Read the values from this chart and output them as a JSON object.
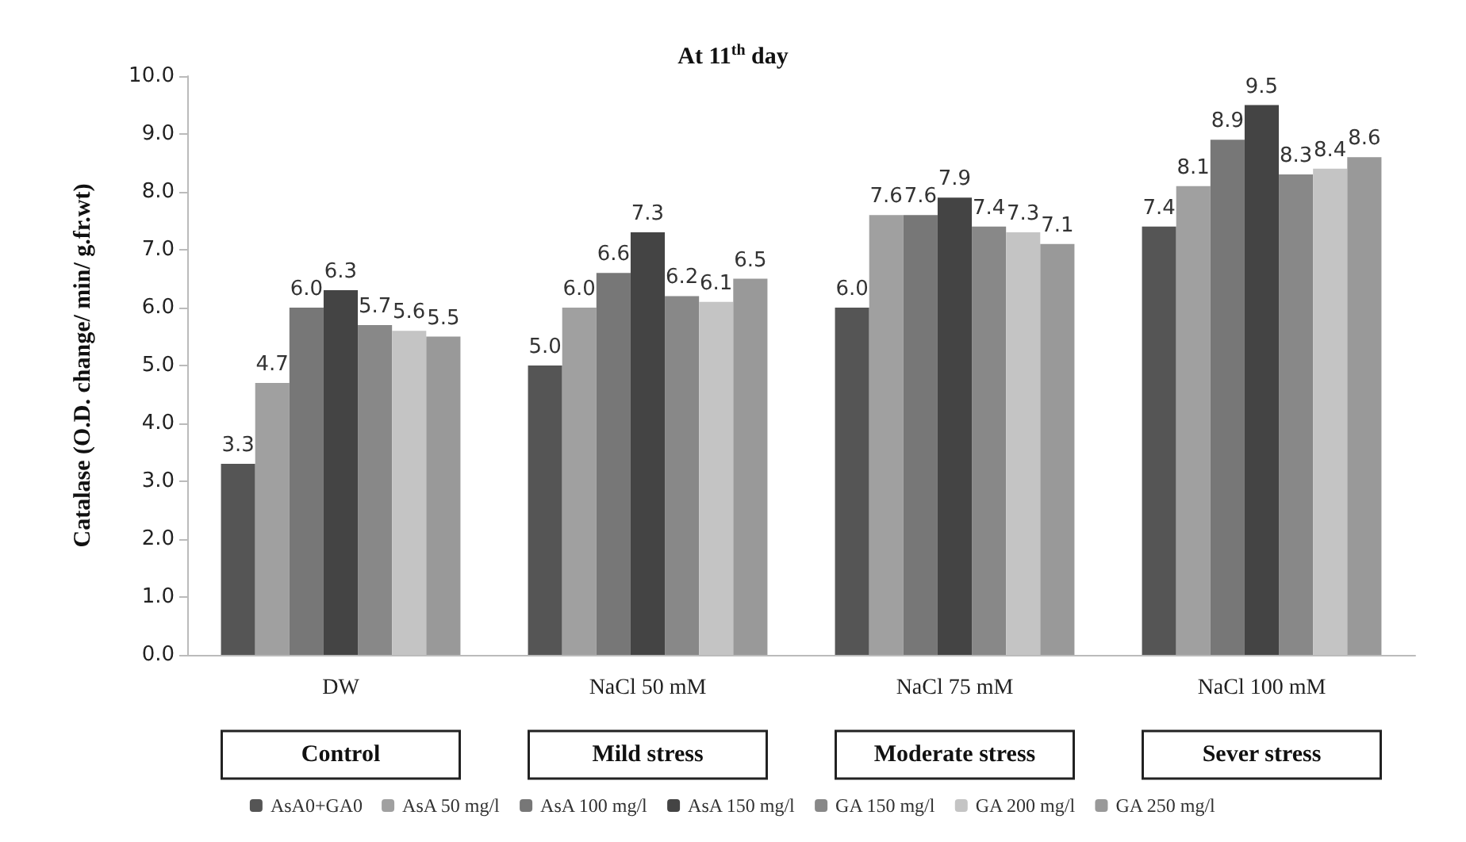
{
  "chart_data": {
    "type": "bar",
    "title": "At 11$^{th}$ day",
    "ylabel": "Catalase (O.D. change/ min/ g.fr.wt)",
    "categories": [
      "DW",
      "NaCl 50 mM",
      "NaCl 75 mM",
      "NaCl 100 mM"
    ],
    "series": [
      {
        "name": "AsA0+GA0",
        "color": "#555555",
        "values": [
          3.3,
          5.0,
          6.0,
          7.4
        ],
        "value_labels": [
          "3.3",
          "5.0",
          "6.0",
          "7.4"
        ]
      },
      {
        "name": "AsA 50 mg/l",
        "color": "#a0a0a0",
        "values": [
          4.7,
          6.0,
          7.6,
          8.1
        ],
        "value_labels": [
          "4.7",
          "6.0",
          "7.6",
          "8.1"
        ]
      },
      {
        "name": "AsA 100 mg/l",
        "color": "#777777",
        "values": [
          6.0,
          6.6,
          7.6,
          8.9
        ],
        "value_labels": [
          "6.0",
          "6.6",
          "7.6",
          "8.9"
        ]
      },
      {
        "name": "AsA 150 mg/l",
        "color": "#444444",
        "values": [
          6.3,
          7.3,
          7.9,
          9.5
        ],
        "value_labels": [
          "6.3",
          "7.3",
          "7.9",
          "9.5"
        ]
      },
      {
        "name": "GA 150 mg/l",
        "color": "#888888",
        "values": [
          5.7,
          6.2,
          7.4,
          8.3
        ],
        "value_labels": [
          "5.7",
          "6.2",
          "7.4",
          "8.3"
        ]
      },
      {
        "name": "GA 200 mg/l",
        "color": "#c4c4c4",
        "values": [
          5.6,
          6.1,
          7.3,
          8.4
        ],
        "value_labels": [
          "5.6",
          "6.1",
          "7.3",
          "8.4"
        ]
      },
      {
        "name": "GA 250 mg/l",
        "color": "#999999",
        "values": [
          5.5,
          6.5,
          7.1,
          8.6
        ],
        "value_labels": [
          "5.5",
          "6.5",
          "7.1",
          "8.6"
        ]
      }
    ],
    "ylim": [
      0,
      10
    ],
    "yticks": [
      {
        "value": 0,
        "label": "0.0"
      },
      {
        "value": 1,
        "label": "1.0"
      },
      {
        "value": 2,
        "label": "2.0"
      },
      {
        "value": 3,
        "label": "3.0"
      },
      {
        "value": 4,
        "label": "4.0"
      },
      {
        "value": 5,
        "label": "5.0"
      },
      {
        "value": 6,
        "label": "6.0"
      },
      {
        "value": 7,
        "label": "7.0"
      },
      {
        "value": 8,
        "label": "8.0"
      },
      {
        "value": 9,
        "label": "9.0"
      },
      {
        "value": 10,
        "label": "10.0"
      }
    ],
    "grid": false,
    "legend": "bottom",
    "annotations": [
      "Control",
      "Mild stress",
      "Moderate stress",
      "Sever stress"
    ]
  }
}
